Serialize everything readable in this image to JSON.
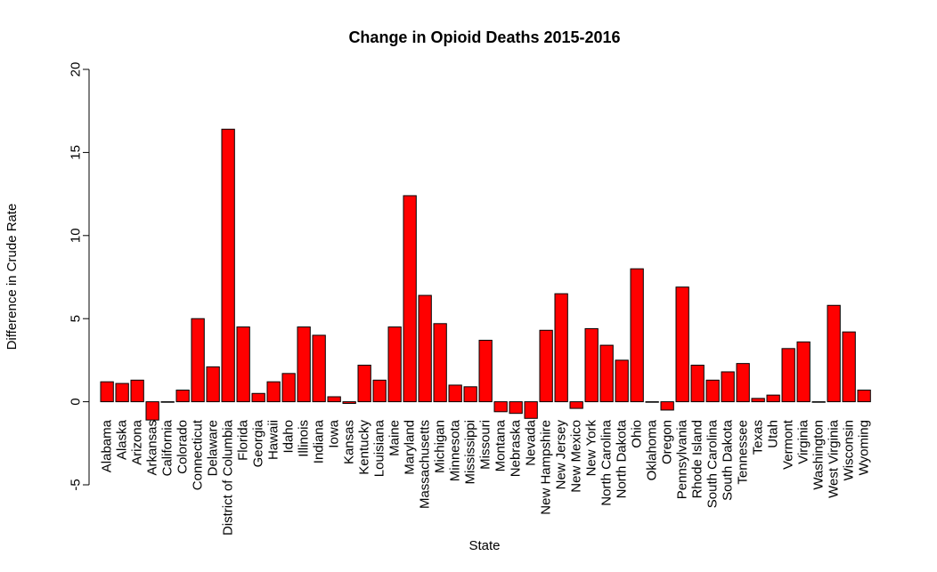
{
  "chart_data": {
    "type": "bar",
    "title": "Change in Opioid Deaths 2015-2016",
    "xlabel": "State",
    "ylabel": "Difference in Crude Rate",
    "ylim": [
      -5,
      20
    ],
    "yticks": [
      -5,
      0,
      5,
      10,
      15,
      20
    ],
    "bar_color": "#ff0000",
    "grid": false,
    "legend": "none",
    "categories": [
      "Alabama",
      "Alaska",
      "Arizona",
      "Arkansas",
      "California",
      "Colorado",
      "Connecticut",
      "Delaware",
      "District of Columbia",
      "Florida",
      "Georgia",
      "Hawaii",
      "Idaho",
      "Illinois",
      "Indiana",
      "Iowa",
      "Kansas",
      "Kentucky",
      "Louisiana",
      "Maine",
      "Maryland",
      "Massachusetts",
      "Michigan",
      "Minnesota",
      "Mississippi",
      "Missouri",
      "Montana",
      "Nebraska",
      "Nevada",
      "New Hampshire",
      "New Jersey",
      "New Mexico",
      "New York",
      "North Carolina",
      "North Dakota",
      "Ohio",
      "Oklahoma",
      "Oregon",
      "Pennsylvania",
      "Rhode Island",
      "South Carolina",
      "South Dakota",
      "Tennessee",
      "Texas",
      "Utah",
      "Vermont",
      "Virginia",
      "Washington",
      "West Virginia",
      "Wisconsin",
      "Wyoming"
    ],
    "values": [
      1.2,
      1.1,
      1.3,
      -1.1,
      0.0,
      0.7,
      5.0,
      2.1,
      16.4,
      4.5,
      0.5,
      1.2,
      1.7,
      4.5,
      4.0,
      0.3,
      -0.1,
      2.2,
      1.3,
      4.5,
      12.4,
      6.4,
      4.7,
      1.0,
      0.9,
      3.7,
      -0.6,
      -0.7,
      -1.0,
      4.3,
      6.5,
      -0.4,
      4.4,
      3.4,
      2.5,
      8.0,
      0.0,
      -0.5,
      6.9,
      2.2,
      1.3,
      1.8,
      2.3,
      0.2,
      0.4,
      3.2,
      3.6,
      0.0,
      5.8,
      4.2,
      0.7
    ]
  }
}
